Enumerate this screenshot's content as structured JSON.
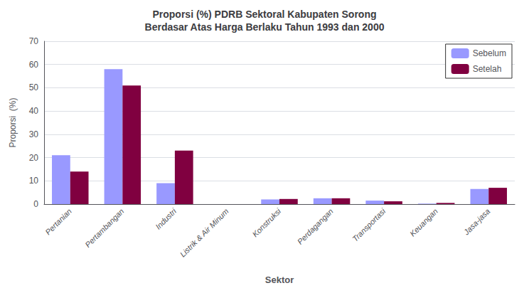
{
  "chart_data": {
    "type": "bar",
    "title": "Proporsi (%) PDRB Sektoral Kabupaten Sorong\nBerdasar Atas Harga Berlaku Tahun 1993 dan 2000",
    "xlabel": "Sektor",
    "ylabel": "Proporsi  (%)",
    "categories": [
      "Pertanian",
      "Pertambangan",
      "Industri",
      "Listrik & Air Minum",
      "Konstruksi",
      "Perdagangan",
      "Transportasi",
      "Keuangan",
      "Jasa-jasa"
    ],
    "series": [
      {
        "name": "Sebelum",
        "color": "#9999FF",
        "values": [
          21,
          58,
          9,
          0,
          2,
          2.5,
          1.5,
          0.2,
          6.5
        ]
      },
      {
        "name": "Setelah",
        "color": "#800040",
        "values": [
          14,
          51,
          23,
          0,
          2.2,
          2.5,
          1.2,
          0.5,
          7
        ]
      }
    ],
    "ylim": [
      0,
      70
    ],
    "yticks": [
      0,
      10,
      20,
      30,
      40,
      50,
      60,
      70
    ],
    "grid": true,
    "legend": "upper right"
  }
}
